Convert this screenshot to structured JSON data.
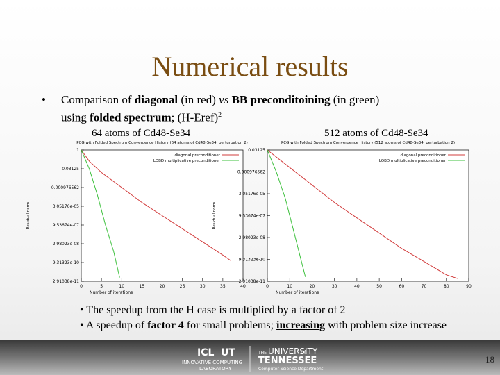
{
  "slide": {
    "title": "Numerical results",
    "bullet": {
      "marker": "•",
      "segments": [
        "Comparison of ",
        "diagonal",
        " (in red) ",
        "vs",
        " ",
        "BB preconditoining",
        " (in green)",
        "using ",
        "folded spectrum",
        "; (H-Eref)",
        "2"
      ]
    },
    "panel_headers": [
      "64 atoms of Cd48-Se34",
      "512 atoms of Cd48-Se34"
    ],
    "notes": [
      {
        "segments": [
          "• The speedup from the H case is multiplied by a factor of 2"
        ]
      },
      {
        "segments": [
          "• A speedup of ",
          "factor 4",
          " for small problems; ",
          "increasing",
          " with problem size increase"
        ]
      }
    ],
    "footer": {
      "logo1": "ICL",
      "logo2": "UT",
      "lab": "INNOVATIVE COMPUTING",
      "lab2": "LABORATORY",
      "uni1": "THE",
      "uni2": "UNIVERSITY",
      "uni3": "of",
      "uni4": "TENNESSEE",
      "dept": "Computer Science Department",
      "page": "18"
    }
  },
  "chart_data": [
    {
      "type": "line",
      "title": "PCG with Folded Spectrum Convergence History (64 atoms of Cd48-Se34, perturbation 2)",
      "x_label": "Number of iterations",
      "y_label": "Residual norm",
      "log_y": true,
      "legend": "top-right",
      "xlim": [
        0,
        40
      ],
      "xticks": [
        0,
        5,
        10,
        15,
        20,
        25,
        30,
        35,
        40
      ],
      "ylim": [
        2.9103830456733704e-11,
        1
      ],
      "yticks": [
        1,
        0.03125,
        {
          "value": 0.0009765625,
          "label": "0.000976562"
        },
        {
          "value": 3.0517578125e-05,
          "label": "3.05176e-05"
        },
        {
          "value": 9.5367431640625e-07,
          "label": "9.53674e-07"
        },
        {
          "value": 2.9802322387695312e-08,
          "label": "2.98023e-08"
        },
        {
          "value": 9.313225746154785e-10,
          "label": "9.31323e-10"
        },
        {
          "value": 2.9103830456733704e-11,
          "label": "2.91038e-11"
        }
      ],
      "series": [
        {
          "name": "diagonal preconditioner",
          "color": "#d23c3c",
          "x": [
            0,
            2,
            5,
            10,
            15,
            20,
            25,
            30,
            35,
            37
          ],
          "values": [
            1,
            0.125,
            0.015625,
            0.000977,
            6.1e-05,
            5.4e-06,
            4.8e-07,
            4.2e-08,
            3.7e-09,
            1.3e-09
          ]
        },
        {
          "name": "LOBD multiplicative preconditioner",
          "color": "#3cc03c",
          "x": [
            0,
            2,
            4,
            6,
            8,
            9.5
          ],
          "values": [
            1,
            0.03,
            0.00024,
            9.5e-07,
            7.5e-09,
            5.8e-11
          ]
        }
      ]
    },
    {
      "type": "line",
      "title": "PCG with Folded Spectrum Convergence History (512 atoms of Cd48-Se34, perturbation 2)",
      "x_label": "Number of iterations",
      "y_label": "Residual norm",
      "log_y": true,
      "legend": "top-right",
      "xlim": [
        0,
        90
      ],
      "xticks": [
        0,
        10,
        20,
        30,
        40,
        50,
        60,
        70,
        80,
        90
      ],
      "ylim": [
        2.9103830456733704e-11,
        0.03125
      ],
      "yticks": [
        0.03125,
        {
          "value": 0.0009765625,
          "label": "0.000976562"
        },
        {
          "value": 3.0517578125e-05,
          "label": "3.05176e-05"
        },
        {
          "value": 9.5367431640625e-07,
          "label": "9.53674e-07"
        },
        {
          "value": 2.9802322387695312e-08,
          "label": "2.98023e-08"
        },
        {
          "value": 9.313225746154785e-10,
          "label": "9.31323e-10"
        },
        {
          "value": 2.9103830456733704e-11,
          "label": "2.91038e-11"
        }
      ],
      "series": [
        {
          "name": "diagonal preconditioner",
          "color": "#d23c3c",
          "x": [
            0,
            10,
            20,
            30,
            40,
            50,
            60,
            70,
            80,
            85
          ],
          "values": [
            0.03125,
            0.00195,
            0.000122,
            7.63e-06,
            6.7e-07,
            6e-08,
            5.3e-09,
            6.6e-10,
            8e-11,
            4.5e-11
          ]
        },
        {
          "name": "LOBD multiplicative preconditioner",
          "color": "#3cc03c",
          "x": [
            0,
            4,
            8,
            12,
            15,
            17
          ],
          "values": [
            0.03125,
            0.00098,
            1.5e-05,
            6e-08,
            9.3e-10,
            5.8e-11
          ]
        }
      ]
    }
  ]
}
